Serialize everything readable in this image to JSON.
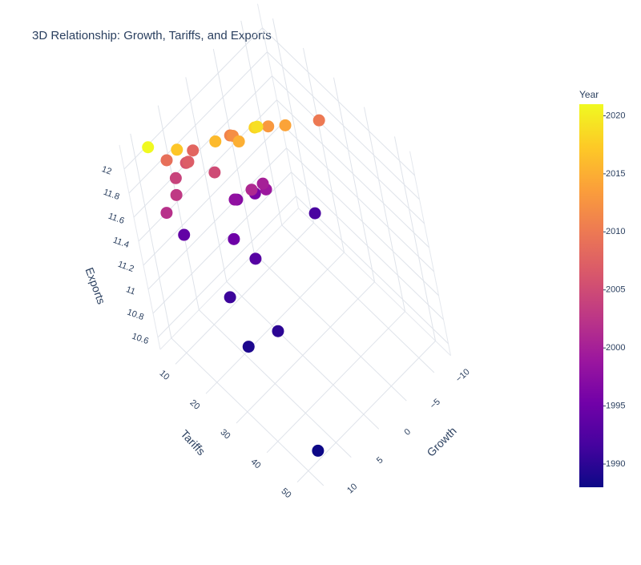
{
  "chart_data": {
    "type": "scatter3d",
    "title": "3D Relationship: Growth, Tariffs, and Exports",
    "x_title": "Growth",
    "y_title": "Tariffs",
    "z_title": "Exports",
    "x": [
      8.2,
      7.5,
      3.5,
      6.4,
      -4.3,
      3.3,
      8.3,
      4.3,
      0.5,
      2.2,
      2.4,
      -0.4,
      -0.2,
      0.9,
      9.6,
      8.0,
      7.4,
      3.9,
      6.0,
      5.7,
      4.7,
      7.9,
      -8.7,
      0.5,
      0.3,
      -3.5,
      -5.1,
      0.1,
      1.9,
      6.3,
      -2.2,
      -2.5,
      8.8
    ],
    "y": [
      50.7,
      29,
      31.4,
      22.5,
      34.9,
      27.6,
      14,
      23.1,
      25.1,
      21.9,
      21.5,
      27.5,
      27.2,
      25.1,
      12.2,
      13.3,
      12.8,
      19.6,
      14.4,
      14.6,
      14.7,
      11.9,
      32.2,
      19.7,
      20.2,
      25.1,
      27.8,
      21.7,
      17,
      12.6,
      23,
      23.3,
      7.8
    ],
    "z": [
      10.6,
      10.9,
      10.9,
      11.1,
      11.6,
      11.4,
      11.5,
      11.5,
      11.75,
      11.7,
      11.7,
      11.8,
      11.85,
      11.8,
      11.7,
      11.8,
      11.9,
      11.95,
      12,
      12,
      12.05,
      12.05,
      12.1,
      12.1,
      12.1,
      12.12,
      12.12,
      12.08,
      12.05,
      12.08,
      12.12,
      12.12,
      12.1
    ],
    "color_values": [
      1988,
      1989,
      1990,
      1991,
      1992,
      1993,
      1994,
      1995,
      1996,
      1997,
      1998,
      1999,
      2000,
      2001,
      2002,
      2003,
      2004,
      2005,
      2006,
      2007,
      2008,
      2009,
      2010,
      2011,
      2012,
      2013,
      2014,
      2015,
      2016,
      2017,
      2018,
      2019,
      2021
    ],
    "xlim": [
      -13,
      12
    ],
    "ylim": [
      5,
      55
    ],
    "zlim": [
      10.5,
      12.2
    ],
    "xticks": [
      {
        "value": -10,
        "label": "−10"
      },
      {
        "value": -5,
        "label": "−5"
      },
      0,
      5,
      10
    ],
    "yticks": [
      10,
      20,
      30,
      40,
      50
    ],
    "zticks": [
      10.6,
      10.8,
      11,
      11.2,
      11.4,
      11.6,
      11.8,
      12
    ],
    "colorbar_title": "Year",
    "colorbar_lim": [
      1988,
      2021
    ],
    "colorbar_ticks": [
      1990,
      1995,
      2000,
      2005,
      2010,
      2015,
      2020
    ],
    "colorscale": [
      "#0d0887",
      "#46039f",
      "#7201a8",
      "#9c179e",
      "#bd3786",
      "#d8576b",
      "#ed7953",
      "#fb9f3a",
      "#fdca26",
      "#f0f921"
    ],
    "grid": true
  }
}
